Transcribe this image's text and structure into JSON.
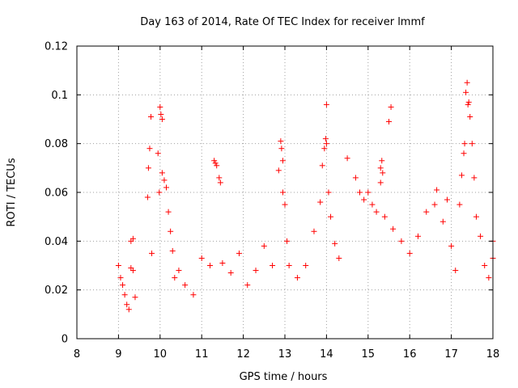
{
  "chart_data": {
    "type": "scatter",
    "title": "Day 163 of 2014, Rate Of TEC Index for receiver lmmf",
    "xlabel": "GPS time / hours",
    "ylabel": "ROTI / TECUs",
    "xlim": [
      8,
      18
    ],
    "ylim": [
      0,
      0.12
    ],
    "xticks": [
      8,
      9,
      10,
      11,
      12,
      13,
      14,
      15,
      16,
      17,
      18
    ],
    "xtick_labels": [
      "8",
      "9",
      "10",
      "11",
      "12",
      "13",
      "14",
      "15",
      "16",
      "17",
      "18"
    ],
    "yticks": [
      0,
      0.02,
      0.04,
      0.06,
      0.08,
      0.1,
      0.12
    ],
    "ytick_labels": [
      "0",
      "0.02",
      "0.04",
      "0.06",
      "0.08",
      "0.1",
      "0.12"
    ],
    "grid": true,
    "marker": "+",
    "color": "#ff0000",
    "series": [
      {
        "name": "ROTI",
        "points": [
          [
            9.0,
            0.03
          ],
          [
            9.05,
            0.025
          ],
          [
            9.1,
            0.022
          ],
          [
            9.15,
            0.018
          ],
          [
            9.2,
            0.014
          ],
          [
            9.25,
            0.012
          ],
          [
            9.3,
            0.029
          ],
          [
            9.3,
            0.04
          ],
          [
            9.35,
            0.041
          ],
          [
            9.35,
            0.028
          ],
          [
            9.4,
            0.017
          ],
          [
            9.7,
            0.058
          ],
          [
            9.72,
            0.07
          ],
          [
            9.75,
            0.078
          ],
          [
            9.78,
            0.091
          ],
          [
            9.8,
            0.035
          ],
          [
            9.95,
            0.076
          ],
          [
            9.98,
            0.06
          ],
          [
            10.0,
            0.095
          ],
          [
            10.02,
            0.092
          ],
          [
            10.05,
            0.09
          ],
          [
            10.05,
            0.068
          ],
          [
            10.1,
            0.065
          ],
          [
            10.15,
            0.062
          ],
          [
            10.2,
            0.052
          ],
          [
            10.25,
            0.044
          ],
          [
            10.3,
            0.036
          ],
          [
            10.35,
            0.025
          ],
          [
            10.45,
            0.028
          ],
          [
            10.6,
            0.022
          ],
          [
            10.8,
            0.018
          ],
          [
            11.0,
            0.033
          ],
          [
            11.2,
            0.03
          ],
          [
            11.3,
            0.073
          ],
          [
            11.33,
            0.072
          ],
          [
            11.36,
            0.071
          ],
          [
            11.42,
            0.066
          ],
          [
            11.45,
            0.064
          ],
          [
            11.5,
            0.031
          ],
          [
            11.7,
            0.027
          ],
          [
            11.9,
            0.035
          ],
          [
            12.1,
            0.022
          ],
          [
            12.3,
            0.028
          ],
          [
            12.5,
            0.038
          ],
          [
            12.7,
            0.03
          ],
          [
            12.85,
            0.069
          ],
          [
            12.9,
            0.081
          ],
          [
            12.92,
            0.078
          ],
          [
            12.95,
            0.073
          ],
          [
            12.95,
            0.06
          ],
          [
            13.0,
            0.055
          ],
          [
            13.05,
            0.04
          ],
          [
            13.1,
            0.03
          ],
          [
            13.3,
            0.025
          ],
          [
            13.5,
            0.03
          ],
          [
            13.7,
            0.044
          ],
          [
            13.85,
            0.056
          ],
          [
            13.9,
            0.071
          ],
          [
            13.95,
            0.078
          ],
          [
            13.98,
            0.082
          ],
          [
            14.0,
            0.096
          ],
          [
            14.0,
            0.08
          ],
          [
            14.05,
            0.06
          ],
          [
            14.1,
            0.05
          ],
          [
            14.2,
            0.039
          ],
          [
            14.3,
            0.033
          ],
          [
            14.5,
            0.074
          ],
          [
            14.7,
            0.066
          ],
          [
            14.8,
            0.06
          ],
          [
            14.9,
            0.057
          ],
          [
            15.0,
            0.06
          ],
          [
            15.1,
            0.055
          ],
          [
            15.2,
            0.052
          ],
          [
            15.3,
            0.064
          ],
          [
            15.3,
            0.07
          ],
          [
            15.33,
            0.073
          ],
          [
            15.35,
            0.068
          ],
          [
            15.4,
            0.05
          ],
          [
            15.5,
            0.089
          ],
          [
            15.55,
            0.095
          ],
          [
            15.6,
            0.045
          ],
          [
            15.8,
            0.04
          ],
          [
            16.0,
            0.035
          ],
          [
            16.2,
            0.042
          ],
          [
            16.4,
            0.052
          ],
          [
            16.6,
            0.055
          ],
          [
            16.65,
            0.061
          ],
          [
            16.8,
            0.048
          ],
          [
            16.9,
            0.057
          ],
          [
            17.0,
            0.038
          ],
          [
            17.1,
            0.028
          ],
          [
            17.2,
            0.055
          ],
          [
            17.25,
            0.067
          ],
          [
            17.3,
            0.076
          ],
          [
            17.32,
            0.08
          ],
          [
            17.35,
            0.101
          ],
          [
            17.38,
            0.105
          ],
          [
            17.4,
            0.096
          ],
          [
            17.42,
            0.097
          ],
          [
            17.45,
            0.091
          ],
          [
            17.5,
            0.08
          ],
          [
            17.55,
            0.066
          ],
          [
            17.6,
            0.05
          ],
          [
            17.7,
            0.042
          ],
          [
            17.8,
            0.03
          ],
          [
            17.9,
            0.025
          ],
          [
            18.0,
            0.04
          ],
          [
            18.0,
            0.033
          ]
        ]
      }
    ]
  }
}
